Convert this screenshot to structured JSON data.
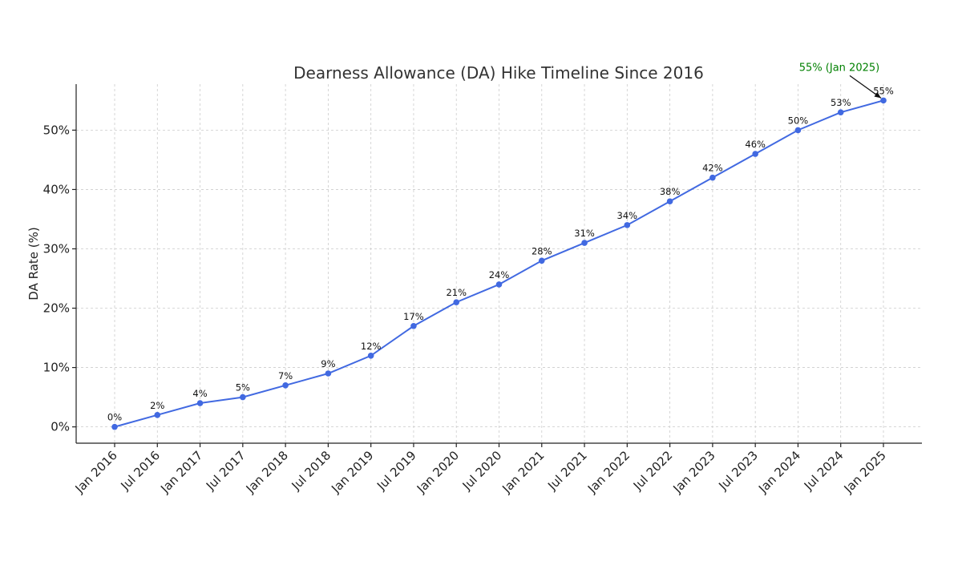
{
  "chart_data": {
    "type": "line",
    "title": "Dearness Allowance (DA) Hike Timeline Since 2016",
    "xlabel": "",
    "ylabel": "DA Rate (%)",
    "categories": [
      "Jan 2016",
      "Jul 2016",
      "Jan 2017",
      "Jul 2017",
      "Jan 2018",
      "Jul 2018",
      "Jan 2019",
      "Jul 2019",
      "Jan 2020",
      "Jul 2020",
      "Jan 2021",
      "Jul 2021",
      "Jan 2022",
      "Jul 2022",
      "Jan 2023",
      "Jul 2023",
      "Jan 2024",
      "Jul 2024",
      "Jan 2025"
    ],
    "values": [
      0,
      2,
      4,
      5,
      7,
      9,
      12,
      17,
      21,
      24,
      28,
      31,
      34,
      38,
      42,
      46,
      50,
      53,
      55
    ],
    "data_labels": [
      "0%",
      "2%",
      "4%",
      "5%",
      "7%",
      "9%",
      "12%",
      "17%",
      "21%",
      "24%",
      "28%",
      "31%",
      "34%",
      "38%",
      "42%",
      "46%",
      "50%",
      "53%",
      "55%"
    ],
    "yticks": [
      0,
      10,
      20,
      30,
      40,
      50
    ],
    "ytick_labels": [
      "0%",
      "10%",
      "20%",
      "30%",
      "40%",
      "50%"
    ],
    "ylim": [
      -2.75,
      57.75
    ],
    "grid": true,
    "line_color": "#4169e1",
    "annotation": {
      "text": "55% (Jan 2025)",
      "target_category": "Jan 2025",
      "target_value": 55,
      "color": "#008000"
    }
  }
}
